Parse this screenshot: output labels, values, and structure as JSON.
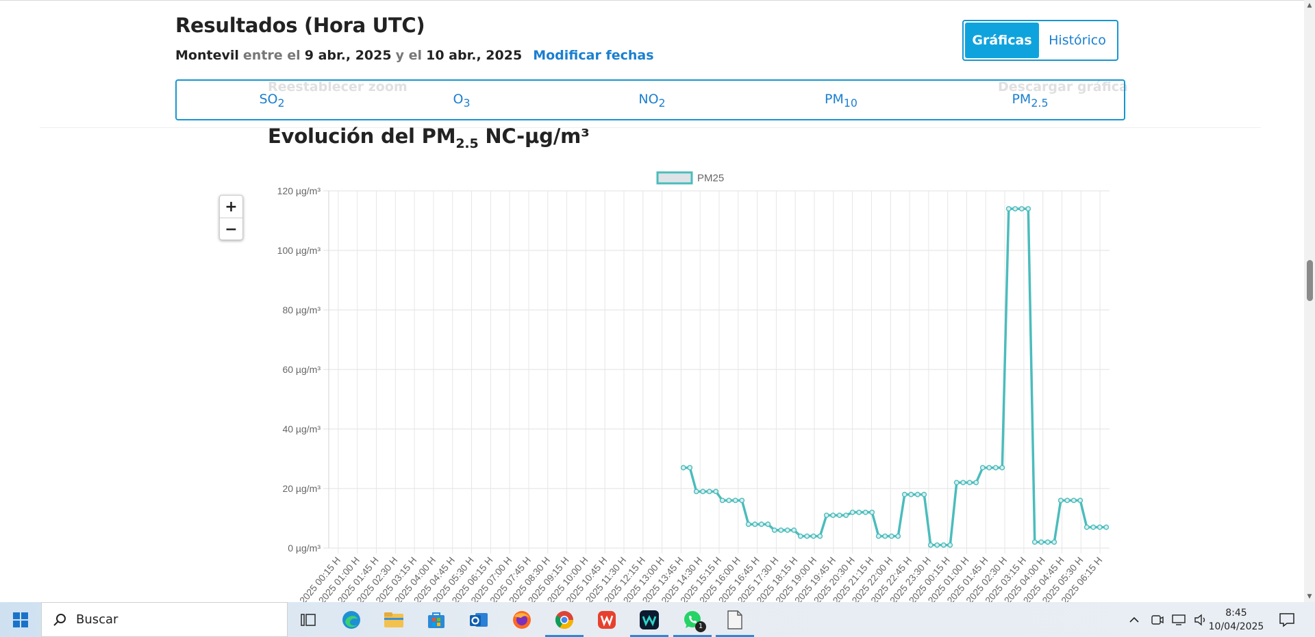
{
  "header": {
    "title": "Resultados (Hora UTC)",
    "station": "Montevil",
    "between": "entre el",
    "date_from": "9 abr., 2025",
    "and": "y el",
    "date_to": "10 abr., 2025",
    "modify_link": "Modificar fechas"
  },
  "view_toggle": {
    "graphs": "Gráficas",
    "history": "Histórico"
  },
  "pollutant_tabs": [
    {
      "base": "SO",
      "sub": "2"
    },
    {
      "base": "O",
      "sub": "3"
    },
    {
      "base": "NO",
      "sub": "2"
    },
    {
      "base": "PM",
      "sub": "10"
    },
    {
      "base": "PM",
      "sub": "2.5"
    }
  ],
  "ghost_buttons": {
    "reset_zoom": "Reestablecer zoom",
    "download": "Descargar gráfica"
  },
  "chart_heading": {
    "prefix": "Evolución del PM",
    "sub": "2.5",
    "suffix": " NC-µg/m³"
  },
  "zoom_controls": {
    "plus": "+",
    "minus": "−"
  },
  "chart_data": {
    "type": "line",
    "legend": "PM25",
    "legend_position": "top-center",
    "grid": true,
    "y_unit": " µg/m³",
    "ylim": [
      0,
      120
    ],
    "y_ticks": [
      0,
      20,
      40,
      60,
      80,
      100,
      120
    ],
    "color": "#4bbcbc",
    "x_tick_labels": [
      "2025 00:15 H",
      "2025 01:00 H",
      "2025 01:45 H",
      "2025 02:30 H",
      "2025 03:15 H",
      "2025 04:00 H",
      "2025 04:45 H",
      "2025 05:30 H",
      "2025 06:15 H",
      "2025 07:00 H",
      "2025 07:45 H",
      "2025 08:30 H",
      "2025 09:15 H",
      "2025 10:00 H",
      "2025 10:45 H",
      "2025 11:30 H",
      "2025 12:15 H",
      "2025 13:00 H",
      "2025 13:45 H",
      "2025 14:30 H",
      "2025 15:15 H",
      "2025 16:00 H",
      "2025 16:45 H",
      "2025 17:30 H",
      "2025 18:15 H",
      "2025 19:00 H",
      "2025 19:45 H",
      "2025 20:30 H",
      "2025 21:15 H",
      "2025 22:00 H",
      "2025 22:45 H",
      "2025 23:30 H",
      "2025 00:15 H",
      "2025 01:00 H",
      "2025 01:45 H",
      "2025 02:30 H",
      "2025 03:15 H",
      "2025 04:00 H",
      "2025 04:45 H",
      "2025 05:30 H",
      "2025 06:15 H"
    ],
    "values": [
      null,
      null,
      null,
      null,
      null,
      null,
      null,
      null,
      null,
      null,
      null,
      null,
      null,
      null,
      null,
      null,
      null,
      null,
      null,
      null,
      null,
      null,
      null,
      null,
      null,
      null,
      null,
      null,
      null,
      null,
      null,
      null,
      null,
      null,
      null,
      null,
      null,
      null,
      null,
      null,
      null,
      null,
      null,
      null,
      null,
      null,
      null,
      null,
      null,
      null,
      null,
      null,
      null,
      null,
      27,
      27,
      19,
      19,
      19,
      19,
      16,
      16,
      16,
      16,
      8,
      8,
      8,
      8,
      6,
      6,
      6,
      6,
      4,
      4,
      4,
      4,
      11,
      11,
      11,
      11,
      12,
      12,
      12,
      12,
      4,
      4,
      4,
      4,
      18,
      18,
      18,
      18,
      1,
      1,
      1,
      1,
      22,
      22,
      22,
      22,
      27,
      27,
      27,
      27,
      114,
      114,
      114,
      114,
      2,
      2,
      2,
      2,
      16,
      16,
      16,
      16,
      7,
      7,
      7,
      7
    ]
  },
  "taskbar": {
    "search_label": "Buscar",
    "whatsapp_badge": "1",
    "time": "8:45",
    "date": "10/04/2025",
    "apps": [
      "task-view-icon",
      "edge-icon",
      "file-explorer-icon",
      "store-icon",
      "outlook-icon",
      "firefox-icon",
      "chrome-icon",
      "wps-icon",
      "webex-icon",
      "whatsapp-icon",
      "file-icon"
    ]
  }
}
